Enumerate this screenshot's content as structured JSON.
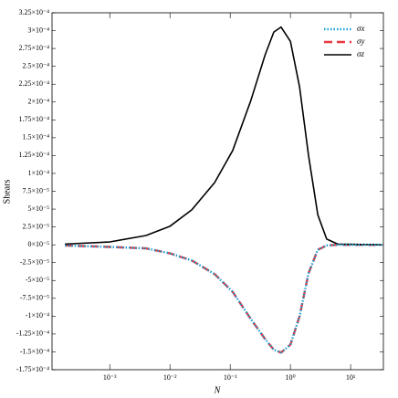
{
  "chart_data": {
    "type": "line",
    "xlabel": "N",
    "ylabel": "Shears",
    "x_scale": "log",
    "legend": "upper right",
    "xlim": [
      0.00011,
      35
    ],
    "ylim": [
      -0.000175,
      0.000325
    ],
    "xticks": [
      {
        "value": 0.001,
        "label": "10⁻³"
      },
      {
        "value": 0.01,
        "label": "10⁻²"
      },
      {
        "value": 0.1,
        "label": "10⁻¹"
      },
      {
        "value": 1,
        "label": "10⁰"
      },
      {
        "value": 10,
        "label": "10¹"
      }
    ],
    "yticks": [
      {
        "value": 0.000325,
        "label": "3.25×10⁻⁴"
      },
      {
        "value": 0.0003,
        "label": "3×10⁻⁴"
      },
      {
        "value": 0.000275,
        "label": "2.75×10⁻⁴"
      },
      {
        "value": 0.00025,
        "label": "2.5×10⁻⁴"
      },
      {
        "value": 0.000225,
        "label": "2.25×10⁻⁴"
      },
      {
        "value": 0.0002,
        "label": "2×10⁻⁴"
      },
      {
        "value": 0.000175,
        "label": "1.75×10⁻⁴"
      },
      {
        "value": 0.00015,
        "label": "1.5×10⁻⁴"
      },
      {
        "value": 0.000125,
        "label": "1.25×10⁻⁴"
      },
      {
        "value": 0.0001,
        "label": "1×10⁻⁴"
      },
      {
        "value": 7.5e-05,
        "label": "7.5×10⁻⁵"
      },
      {
        "value": 5e-05,
        "label": "5×10⁻⁵"
      },
      {
        "value": 2.5e-05,
        "label": "2.5×10⁻⁵"
      },
      {
        "value": 0,
        "label": "0×10⁻⁵"
      },
      {
        "value": -2.5e-05,
        "label": "-2.5×10⁻⁵"
      },
      {
        "value": -5e-05,
        "label": "-5×10⁻⁵"
      },
      {
        "value": -7.5e-05,
        "label": "-7.5×10⁻⁵"
      },
      {
        "value": -0.0001,
        "label": "-1×10⁻⁴"
      },
      {
        "value": -0.000125,
        "label": "-1.25×10⁻⁴"
      },
      {
        "value": -0.00015,
        "label": "-1.5×10⁻⁴"
      },
      {
        "value": -0.000175,
        "label": "-1.75×10⁻⁴"
      }
    ],
    "x": [
      0.00018,
      0.001,
      0.004,
      0.01,
      0.023,
      0.055,
      0.11,
      0.22,
      0.38,
      0.53,
      0.7,
      1.0,
      1.42,
      2.0,
      2.85,
      4.0,
      6.1,
      33
    ],
    "series": [
      {
        "name": "σx",
        "color": "#1a9fd0",
        "dash": "dotted",
        "values": [
          -1e-06,
          -3e-06,
          -5e-06,
          -1.2e-05,
          -2.2e-05,
          -4.1e-05,
          -6.6e-05,
          -0.000104,
          -0.000132,
          -0.000147,
          -0.000151,
          -0.00014,
          -0.0001,
          -4e-05,
          -7e-06,
          -1e-06,
          0,
          0
        ]
      },
      {
        "name": "σy",
        "color": "#e8373e",
        "dash": "dashed",
        "values": [
          -1e-06,
          -3e-06,
          -5e-06,
          -1.2e-05,
          -2.2e-05,
          -4.1e-05,
          -6.6e-05,
          -0.000104,
          -0.000132,
          -0.000147,
          -0.000151,
          -0.00014,
          -0.0001,
          -4e-05,
          -7e-06,
          -1e-06,
          0,
          0
        ]
      },
      {
        "name": "σz",
        "color": "#000000",
        "dash": "solid",
        "values": [
          1e-06,
          4e-06,
          1.3e-05,
          2.6e-05,
          4.9e-05,
          8.7e-05,
          0.000132,
          0.000202,
          0.000266,
          0.000298,
          0.000305,
          0.000285,
          0.000221,
          0.000125,
          4.2e-05,
          8e-06,
          1e-06,
          0
        ]
      }
    ]
  }
}
